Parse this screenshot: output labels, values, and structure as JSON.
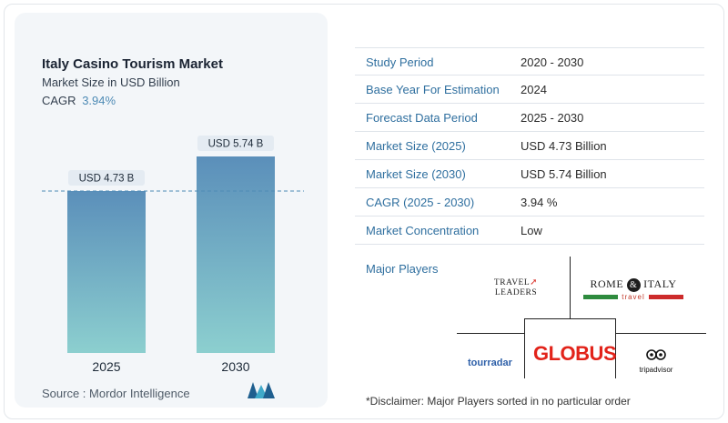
{
  "chart_data": {
    "type": "bar",
    "title": "Italy Casino Tourism Market",
    "subtitle": "Market Size in USD Billion",
    "cagr_label": "CAGR",
    "cagr_value": "3.94%",
    "categories": [
      "2025",
      "2030"
    ],
    "values": [
      4.73,
      5.74
    ],
    "value_labels": [
      "USD 4.73 B",
      "USD 5.74 B"
    ],
    "bar_gradient": [
      "#5b8fba",
      "#8ccfcf"
    ],
    "reference_line_at": 4.73,
    "ylim": [
      0,
      5.74
    ],
    "grid": false
  },
  "source": "Source :  Mordor Intelligence",
  "table": {
    "rows": [
      {
        "key": "Study Period",
        "value": "2020 - 2030"
      },
      {
        "key": "Base Year For Estimation",
        "value": "2024"
      },
      {
        "key": "Forecast Data Period",
        "value": "2025 - 2030"
      },
      {
        "key": "Market Size (2025)",
        "value": "USD 4.73 Billion"
      },
      {
        "key": "Market Size (2030)",
        "value": "USD 5.74 Billion"
      },
      {
        "key": "CAGR (2025 - 2030)",
        "value": "3.94 %"
      },
      {
        "key": "Market Concentration",
        "value": "Low"
      }
    ]
  },
  "players": {
    "label": "Major Players",
    "travel_leaders": {
      "line1": "TRAVEL",
      "line2": "LEADERS"
    },
    "rome_italy": {
      "left": "ROME",
      "amp": "&",
      "right": "ITALY",
      "sub": "travel"
    },
    "globus": "GLOBUS",
    "tourradar": "tourradar",
    "tripadvisor": "tripadvisor"
  },
  "disclaimer": "*Disclaimer: Major Players sorted in no particular order",
  "colors": {
    "accent": "#2f6f9f",
    "globus_red": "#e2231a",
    "italy_green": "#2e8b3e",
    "italy_red": "#cd2b2b"
  }
}
